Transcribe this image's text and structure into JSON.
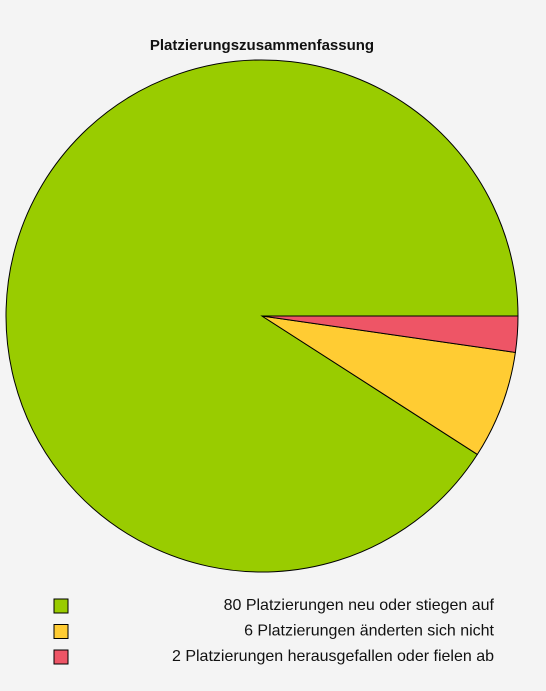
{
  "chart_data": {
    "type": "pie",
    "title": "Platzierungszusammenfassung",
    "categories": [
      "80 Platzierungen neu oder stiegen auf",
      "6 Platzierungen änderten sich nicht",
      "2 Platzierungen herausgefallen oder fielen ab"
    ],
    "values": [
      80,
      6,
      2
    ],
    "colors": [
      "#99cc00",
      "#ffcc33",
      "#ee5566"
    ]
  }
}
